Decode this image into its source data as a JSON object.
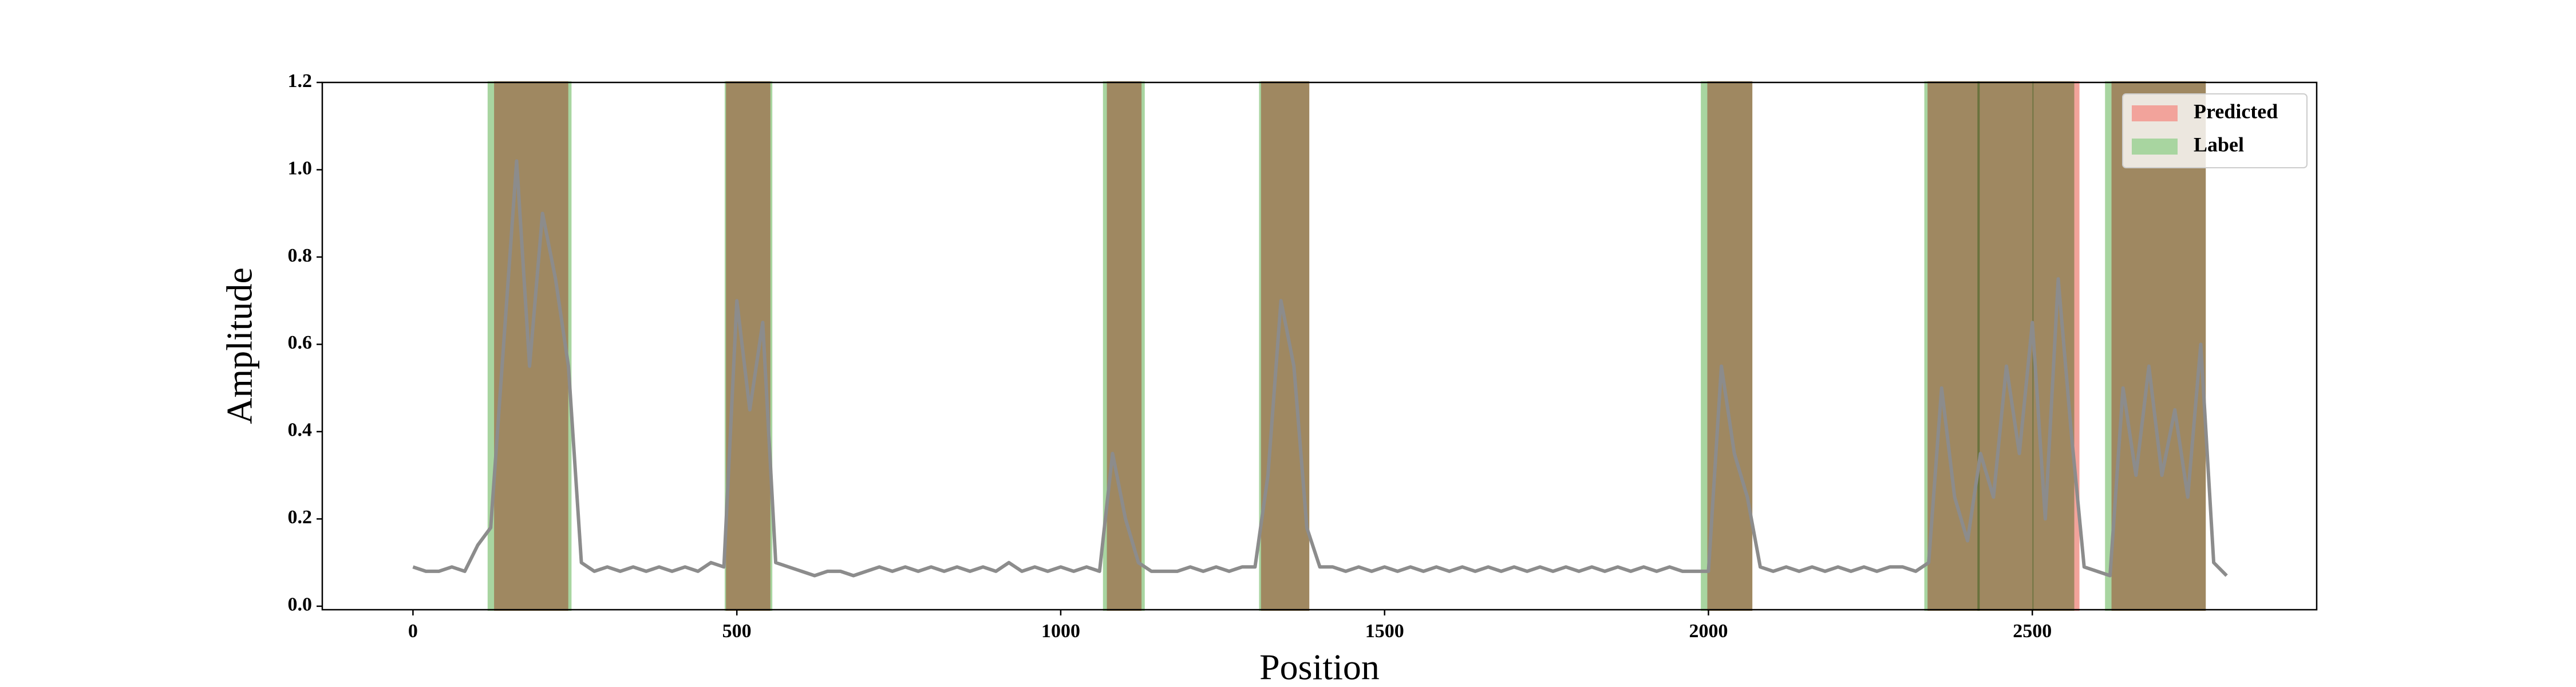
{
  "chart_data": {
    "type": "line",
    "xlabel": "Position",
    "ylabel": "Amplitude",
    "xlim": [
      -140,
      2939
    ],
    "ylim": [
      -0.008,
      1.2
    ],
    "xticks": [
      0,
      500,
      1000,
      1500,
      2000,
      2500
    ],
    "yticks": [
      {
        "value": 0,
        "label": "0.0"
      },
      0.2,
      0.4,
      0.6,
      0.8,
      {
        "value": 1,
        "label": "1.0"
      },
      1.2
    ],
    "x": [
      0,
      20,
      40,
      60,
      80,
      100,
      120,
      140,
      160,
      180,
      200,
      220,
      240,
      260,
      280,
      300,
      320,
      340,
      360,
      380,
      400,
      420,
      440,
      460,
      480,
      500,
      520,
      540,
      560,
      580,
      600,
      620,
      640,
      660,
      680,
      700,
      720,
      740,
      760,
      780,
      800,
      820,
      840,
      860,
      880,
      900,
      920,
      940,
      960,
      980,
      1000,
      1020,
      1040,
      1060,
      1080,
      1100,
      1120,
      1140,
      1160,
      1180,
      1200,
      1220,
      1240,
      1260,
      1280,
      1300,
      1320,
      1340,
      1360,
      1380,
      1400,
      1420,
      1440,
      1460,
      1480,
      1500,
      1520,
      1540,
      1560,
      1580,
      1600,
      1620,
      1640,
      1660,
      1680,
      1700,
      1720,
      1740,
      1760,
      1780,
      1800,
      1820,
      1840,
      1860,
      1880,
      1900,
      1920,
      1940,
      1960,
      1980,
      2000,
      2020,
      2040,
      2060,
      2080,
      2100,
      2120,
      2140,
      2160,
      2180,
      2200,
      2220,
      2240,
      2260,
      2280,
      2300,
      2320,
      2340,
      2360,
      2380,
      2400,
      2420,
      2440,
      2460,
      2480,
      2500,
      2520,
      2540,
      2560,
      2580,
      2600,
      2620,
      2640,
      2660,
      2680,
      2700,
      2720,
      2740,
      2760,
      2780,
      2800
    ],
    "values": [
      0.09,
      0.08,
      0.08,
      0.09,
      0.08,
      0.14,
      0.18,
      0.6,
      1.02,
      0.55,
      0.9,
      0.75,
      0.55,
      0.1,
      0.08,
      0.09,
      0.08,
      0.09,
      0.08,
      0.09,
      0.08,
      0.09,
      0.08,
      0.1,
      0.09,
      0.7,
      0.45,
      0.65,
      0.1,
      0.09,
      0.08,
      0.07,
      0.08,
      0.08,
      0.07,
      0.08,
      0.09,
      0.08,
      0.09,
      0.08,
      0.09,
      0.08,
      0.09,
      0.08,
      0.09,
      0.08,
      0.1,
      0.08,
      0.09,
      0.08,
      0.09,
      0.08,
      0.09,
      0.08,
      0.35,
      0.2,
      0.1,
      0.08,
      0.08,
      0.08,
      0.09,
      0.08,
      0.09,
      0.08,
      0.09,
      0.09,
      0.3,
      0.7,
      0.55,
      0.18,
      0.09,
      0.09,
      0.08,
      0.09,
      0.08,
      0.09,
      0.08,
      0.09,
      0.08,
      0.09,
      0.08,
      0.09,
      0.08,
      0.09,
      0.08,
      0.09,
      0.08,
      0.09,
      0.08,
      0.09,
      0.08,
      0.09,
      0.08,
      0.09,
      0.08,
      0.09,
      0.08,
      0.09,
      0.08,
      0.08,
      0.08,
      0.55,
      0.35,
      0.25,
      0.09,
      0.08,
      0.09,
      0.08,
      0.09,
      0.08,
      0.09,
      0.08,
      0.09,
      0.08,
      0.09,
      0.09,
      0.08,
      0.1,
      0.5,
      0.25,
      0.15,
      0.35,
      0.25,
      0.55,
      0.35,
      0.65,
      0.2,
      0.75,
      0.4,
      0.09,
      0.08,
      0.07,
      0.5,
      0.3,
      0.55,
      0.3,
      0.45,
      0.25,
      0.6,
      0.1,
      0.07
    ],
    "color": "#8c8c8c",
    "regions": [
      {
        "name": "Predicted",
        "color": "#f2a39b",
        "ranges": [
          [
            127,
            238
          ],
          [
            485,
            550
          ],
          [
            1073,
            1123
          ],
          [
            1311,
            1382
          ],
          [
            2000,
            2066
          ],
          [
            2340,
            2571
          ],
          [
            2624,
            2766
          ]
        ]
      },
      {
        "name": "Label",
        "color": "#a8d5a0",
        "ranges": [
          [
            117,
            243
          ],
          [
            483,
            553
          ],
          [
            1067,
            1128
          ],
          [
            1308,
            1382
          ],
          [
            1990,
            2066
          ],
          [
            2335,
            2417
          ],
          [
            2417,
            2500
          ],
          [
            2502,
            2563
          ],
          [
            2614,
            2766
          ]
        ]
      }
    ],
    "legend": "upper right"
  }
}
